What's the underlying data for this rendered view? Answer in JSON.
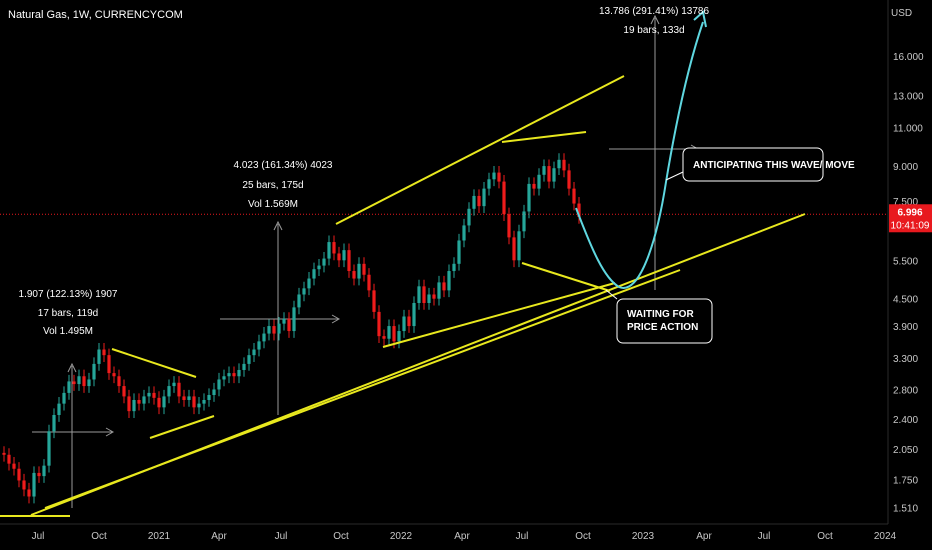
{
  "title": "Natural Gas, 1W, CURRENCYCOM",
  "colors": {
    "background": "#000000",
    "up": "#26a69a",
    "down": "#ef1c1c",
    "trendline": "#e8e81e",
    "projection": "#5fd7e0",
    "measure": "#9a9a9a",
    "axis_text": "#c8c8c8",
    "price_tag": "#e8191e",
    "price_line": "#e8191e"
  },
  "chart_data": {
    "type": "candlestick",
    "title": "Natural Gas, 1W, CURRENCYCOM",
    "currency_label": "USD",
    "y_scale": "log",
    "ylim": [
      1.43,
      21.0
    ],
    "x_ticks": [
      "Jul",
      "Oct",
      "2021",
      "Apr",
      "Jul",
      "Oct",
      "2022",
      "Apr",
      "Jul",
      "Oct",
      "2023",
      "Apr",
      "Jul",
      "Oct",
      "2024"
    ],
    "y_ticks": [
      "16.000",
      "13.000",
      "11.000",
      "9.000",
      "7.500",
      "6.996",
      "5.500",
      "4.500",
      "3.900",
      "3.300",
      "2.800",
      "2.400",
      "2.050",
      "1.750",
      "1.510"
    ],
    "last_price": "6.996",
    "countdown": "10:41:09",
    "closes": [
      1.99,
      1.9,
      1.85,
      1.74,
      1.66,
      1.6,
      1.81,
      1.78,
      1.88,
      2.25,
      2.45,
      2.6,
      2.75,
      2.92,
      2.88,
      3.0,
      2.85,
      2.95,
      3.2,
      3.45,
      3.35,
      3.05,
      3.0,
      2.85,
      2.7,
      2.5,
      2.65,
      2.6,
      2.7,
      2.75,
      2.68,
      2.55,
      2.7,
      2.85,
      2.9,
      2.7,
      2.65,
      2.7,
      2.55,
      2.6,
      2.65,
      2.72,
      2.8,
      2.95,
      3.0,
      3.05,
      3.0,
      3.1,
      3.2,
      3.35,
      3.45,
      3.6,
      3.75,
      3.9,
      3.75,
      3.95,
      4.05,
      3.8,
      4.3,
      4.6,
      4.75,
      5.0,
      5.25,
      5.35,
      5.55,
      6.05,
      5.7,
      5.5,
      5.8,
      5.2,
      5.0,
      5.4,
      5.1,
      4.7,
      4.2,
      3.7,
      3.65,
      3.9,
      3.6,
      3.8,
      4.1,
      3.9,
      4.4,
      4.8,
      4.4,
      4.6,
      4.5,
      4.9,
      4.7,
      5.2,
      5.4,
      6.1,
      6.6,
      7.2,
      7.7,
      7.3,
      8.0,
      8.4,
      8.7,
      8.3,
      7.0,
      6.2,
      5.5,
      6.4,
      7.1,
      8.2,
      8.0,
      8.6,
      9.0,
      8.3,
      8.9,
      9.3,
      8.8,
      8.0,
      7.4,
      6.9
    ]
  },
  "annotations": {
    "measure1": [
      "1.907 (122.13%) 1907",
      "17 bars, 119d",
      "Vol 1.495M"
    ],
    "measure2": [
      "4.023 (161.34%) 4023",
      "25 bars, 175d",
      "Vol 1.569M"
    ],
    "measure3": [
      "13.786 (291.41%) 13786",
      "19 bars, 133d"
    ],
    "callout_anticipating": "ANTICIPATING THIS WAVE/ MOVE",
    "callout_waiting": [
      "WAITING FOR",
      "PRICE ACTION"
    ]
  }
}
